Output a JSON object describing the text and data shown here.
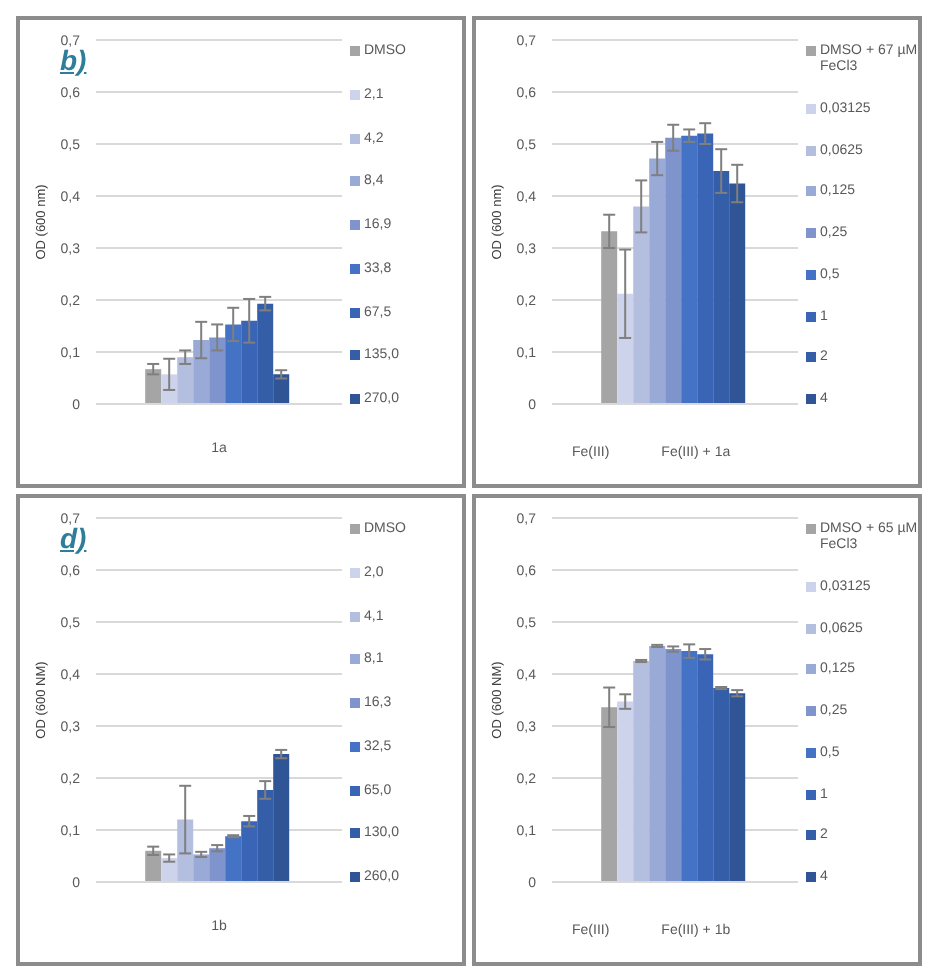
{
  "chart_data": [
    {
      "type": "bar",
      "title": "b)",
      "ylabel": "OD (600 nm)",
      "categories": [
        null
      ],
      "annotations": [
        "1a"
      ],
      "ylim": [
        0,
        0.7
      ],
      "yticks": [
        {
          "value": 0,
          "label": "0"
        },
        {
          "value": 0.1,
          "label": "0,1"
        },
        {
          "value": 0.2,
          "label": "0,2"
        },
        {
          "value": 0.3,
          "label": "0,3"
        },
        {
          "value": 0.4,
          "label": "0,4"
        },
        {
          "value": 0.5,
          "label": "0,5"
        },
        {
          "value": 0.6,
          "label": "0,6"
        },
        {
          "value": 0.7,
          "label": "0,7"
        }
      ],
      "grid": "y",
      "legend": "right",
      "series": [
        {
          "name": "DMSO",
          "color": "#a5a5a5",
          "values": [
            0.067
          ],
          "errors": [
            0.01
          ]
        },
        {
          "name": "2,1",
          "color": "#cdd3ea",
          "values": [
            0.057
          ],
          "errors": [
            0.03
          ]
        },
        {
          "name": "4,2",
          "color": "#b4bfe0",
          "values": [
            0.09
          ],
          "errors": [
            0.013
          ]
        },
        {
          "name": "8,4",
          "color": "#9aaad6",
          "values": [
            0.123
          ],
          "errors": [
            0.035
          ]
        },
        {
          "name": "16,9",
          "color": "#7f94cc",
          "values": [
            0.128
          ],
          "errors": [
            0.025
          ]
        },
        {
          "name": "33,8",
          "color": "#4472c4",
          "values": [
            0.153
          ],
          "errors": [
            0.032
          ]
        },
        {
          "name": "67,5",
          "color": "#3a65b7",
          "values": [
            0.16
          ],
          "errors": [
            0.042
          ]
        },
        {
          "name": "135,0",
          "color": "#355ea8",
          "values": [
            0.193
          ],
          "errors": [
            0.013
          ]
        },
        {
          "name": "270,0",
          "color": "#2f5597",
          "values": [
            0.057
          ],
          "errors": [
            0.008
          ]
        }
      ]
    },
    {
      "type": "bar",
      "ylabel": "OD (600 nm)",
      "categories": [
        null
      ],
      "annotations": [
        "Fe(III)",
        "Fe(III) + 1a"
      ],
      "ylim": [
        0,
        0.7
      ],
      "yticks": [
        {
          "value": 0,
          "label": "0"
        },
        {
          "value": 0.1,
          "label": "0,1"
        },
        {
          "value": 0.2,
          "label": "0,2"
        },
        {
          "value": 0.3,
          "label": "0,3"
        },
        {
          "value": 0.4,
          "label": "0,4"
        },
        {
          "value": 0.5,
          "label": "0,5"
        },
        {
          "value": 0.6,
          "label": "0,6"
        },
        {
          "value": 0.7,
          "label": "0,7"
        }
      ],
      "grid": "y",
      "legend": "right",
      "series": [
        {
          "name": "DMSO + 67 µM FeCl3",
          "color": "#a5a5a5",
          "values": [
            0.332
          ],
          "errors": [
            0.032
          ]
        },
        {
          "name": "0,03125",
          "color": "#cdd3ea",
          "values": [
            0.212
          ],
          "errors": [
            0.085
          ]
        },
        {
          "name": "0,0625",
          "color": "#b4bfe0",
          "values": [
            0.38
          ],
          "errors": [
            0.05
          ]
        },
        {
          "name": "0,125",
          "color": "#9aaad6",
          "values": [
            0.472
          ],
          "errors": [
            0.032
          ]
        },
        {
          "name": "0,25",
          "color": "#7f94cc",
          "values": [
            0.512
          ],
          "errors": [
            0.025
          ]
        },
        {
          "name": "0,5",
          "color": "#4472c4",
          "values": [
            0.516
          ],
          "errors": [
            0.012
          ]
        },
        {
          "name": "1",
          "color": "#3a65b7",
          "values": [
            0.52
          ],
          "errors": [
            0.02
          ]
        },
        {
          "name": "2",
          "color": "#355ea8",
          "values": [
            0.448
          ],
          "errors": [
            0.042
          ]
        },
        {
          "name": "4",
          "color": "#2f5597",
          "values": [
            0.424
          ],
          "errors": [
            0.036
          ]
        }
      ]
    },
    {
      "type": "bar",
      "title": "d)",
      "ylabel": "OD (600 NM)",
      "categories": [
        null
      ],
      "annotations": [
        "1b"
      ],
      "ylim": [
        0,
        0.7
      ],
      "yticks": [
        {
          "value": 0,
          "label": "0"
        },
        {
          "value": 0.1,
          "label": "0,1"
        },
        {
          "value": 0.2,
          "label": "0,2"
        },
        {
          "value": 0.3,
          "label": "0,3"
        },
        {
          "value": 0.4,
          "label": "0,4"
        },
        {
          "value": 0.5,
          "label": "0,5"
        },
        {
          "value": 0.6,
          "label": "0,6"
        },
        {
          "value": 0.7,
          "label": "0,7"
        }
      ],
      "grid": "y",
      "legend": "right",
      "series": [
        {
          "name": "DMSO",
          "color": "#a5a5a5",
          "values": [
            0.06
          ],
          "errors": [
            0.008
          ]
        },
        {
          "name": "2,0",
          "color": "#cdd3ea",
          "values": [
            0.046
          ],
          "errors": [
            0.007
          ]
        },
        {
          "name": "4,1",
          "color": "#b4bfe0",
          "values": [
            0.12
          ],
          "errors": [
            0.065
          ]
        },
        {
          "name": "8,1",
          "color": "#9aaad6",
          "values": [
            0.053
          ],
          "errors": [
            0.005
          ]
        },
        {
          "name": "16,3",
          "color": "#7f94cc",
          "values": [
            0.065
          ],
          "errors": [
            0.006
          ]
        },
        {
          "name": "32,5",
          "color": "#4472c4",
          "values": [
            0.088
          ],
          "errors": [
            0.002
          ]
        },
        {
          "name": "65,0",
          "color": "#3a65b7",
          "values": [
            0.117
          ],
          "errors": [
            0.01
          ]
        },
        {
          "name": "130,0",
          "color": "#355ea8",
          "values": [
            0.177
          ],
          "errors": [
            0.017
          ]
        },
        {
          "name": "260,0",
          "color": "#2f5597",
          "values": [
            0.246
          ],
          "errors": [
            0.008
          ]
        }
      ]
    },
    {
      "type": "bar",
      "ylabel": "OD (600 NM)",
      "categories": [
        null
      ],
      "annotations": [
        "Fe(III)",
        "Fe(III) + 1b"
      ],
      "ylim": [
        0,
        0.7
      ],
      "yticks": [
        {
          "value": 0,
          "label": "0"
        },
        {
          "value": 0.1,
          "label": "0,1"
        },
        {
          "value": 0.2,
          "label": "0,2"
        },
        {
          "value": 0.3,
          "label": "0,3"
        },
        {
          "value": 0.4,
          "label": "0,4"
        },
        {
          "value": 0.5,
          "label": "0,5"
        },
        {
          "value": 0.6,
          "label": "0,6"
        },
        {
          "value": 0.7,
          "label": "0,7"
        }
      ],
      "grid": "y",
      "legend": "right",
      "series": [
        {
          "name": "DMSO + 65 µM FeCl3",
          "color": "#a5a5a5",
          "values": [
            0.336
          ],
          "errors": [
            0.038
          ]
        },
        {
          "name": "0,03125",
          "color": "#cdd3ea",
          "values": [
            0.347
          ],
          "errors": [
            0.014
          ]
        },
        {
          "name": "0,0625",
          "color": "#b4bfe0",
          "values": [
            0.425
          ],
          "errors": [
            0.002
          ]
        },
        {
          "name": "0,125",
          "color": "#9aaad6",
          "values": [
            0.454
          ],
          "errors": [
            0.002
          ]
        },
        {
          "name": "0,25",
          "color": "#7f94cc",
          "values": [
            0.448
          ],
          "errors": [
            0.005
          ]
        },
        {
          "name": "0,5",
          "color": "#4472c4",
          "values": [
            0.444
          ],
          "errors": [
            0.013
          ]
        },
        {
          "name": "1",
          "color": "#3a65b7",
          "values": [
            0.438
          ],
          "errors": [
            0.01
          ]
        },
        {
          "name": "2",
          "color": "#355ea8",
          "values": [
            0.373
          ],
          "errors": [
            0.002
          ]
        },
        {
          "name": "4",
          "color": "#2f5597",
          "values": [
            0.363
          ],
          "errors": [
            0.006
          ]
        }
      ]
    }
  ]
}
